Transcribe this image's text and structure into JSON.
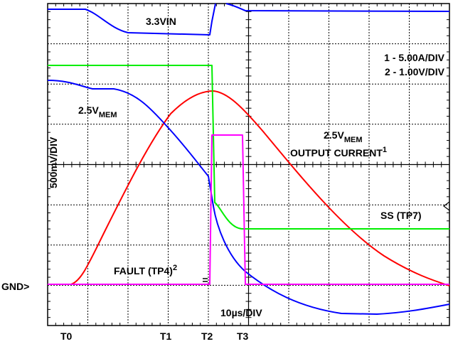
{
  "labels": {
    "vin": "3.3VIN",
    "scale1": "1 - 5.00A/DIV",
    "scale2": "2 - 1.00V/DIV",
    "vmem": {
      "text": "2.5V",
      "sub": "MEM"
    },
    "vertical_scale": "500mV/DIV",
    "current": {
      "text": "2.5V",
      "sub": "MEM",
      "line2": "OUTPUT CURRENT",
      "sup": "1"
    },
    "ss": "SS (TP7)",
    "fault": {
      "text": "FAULT (TP4)",
      "sup": "2"
    },
    "gnd": "GND>",
    "timebase": "10µs/DIV",
    "t0": "T0",
    "t1": "T1",
    "t2": "T2",
    "t3": "T3"
  }
}
